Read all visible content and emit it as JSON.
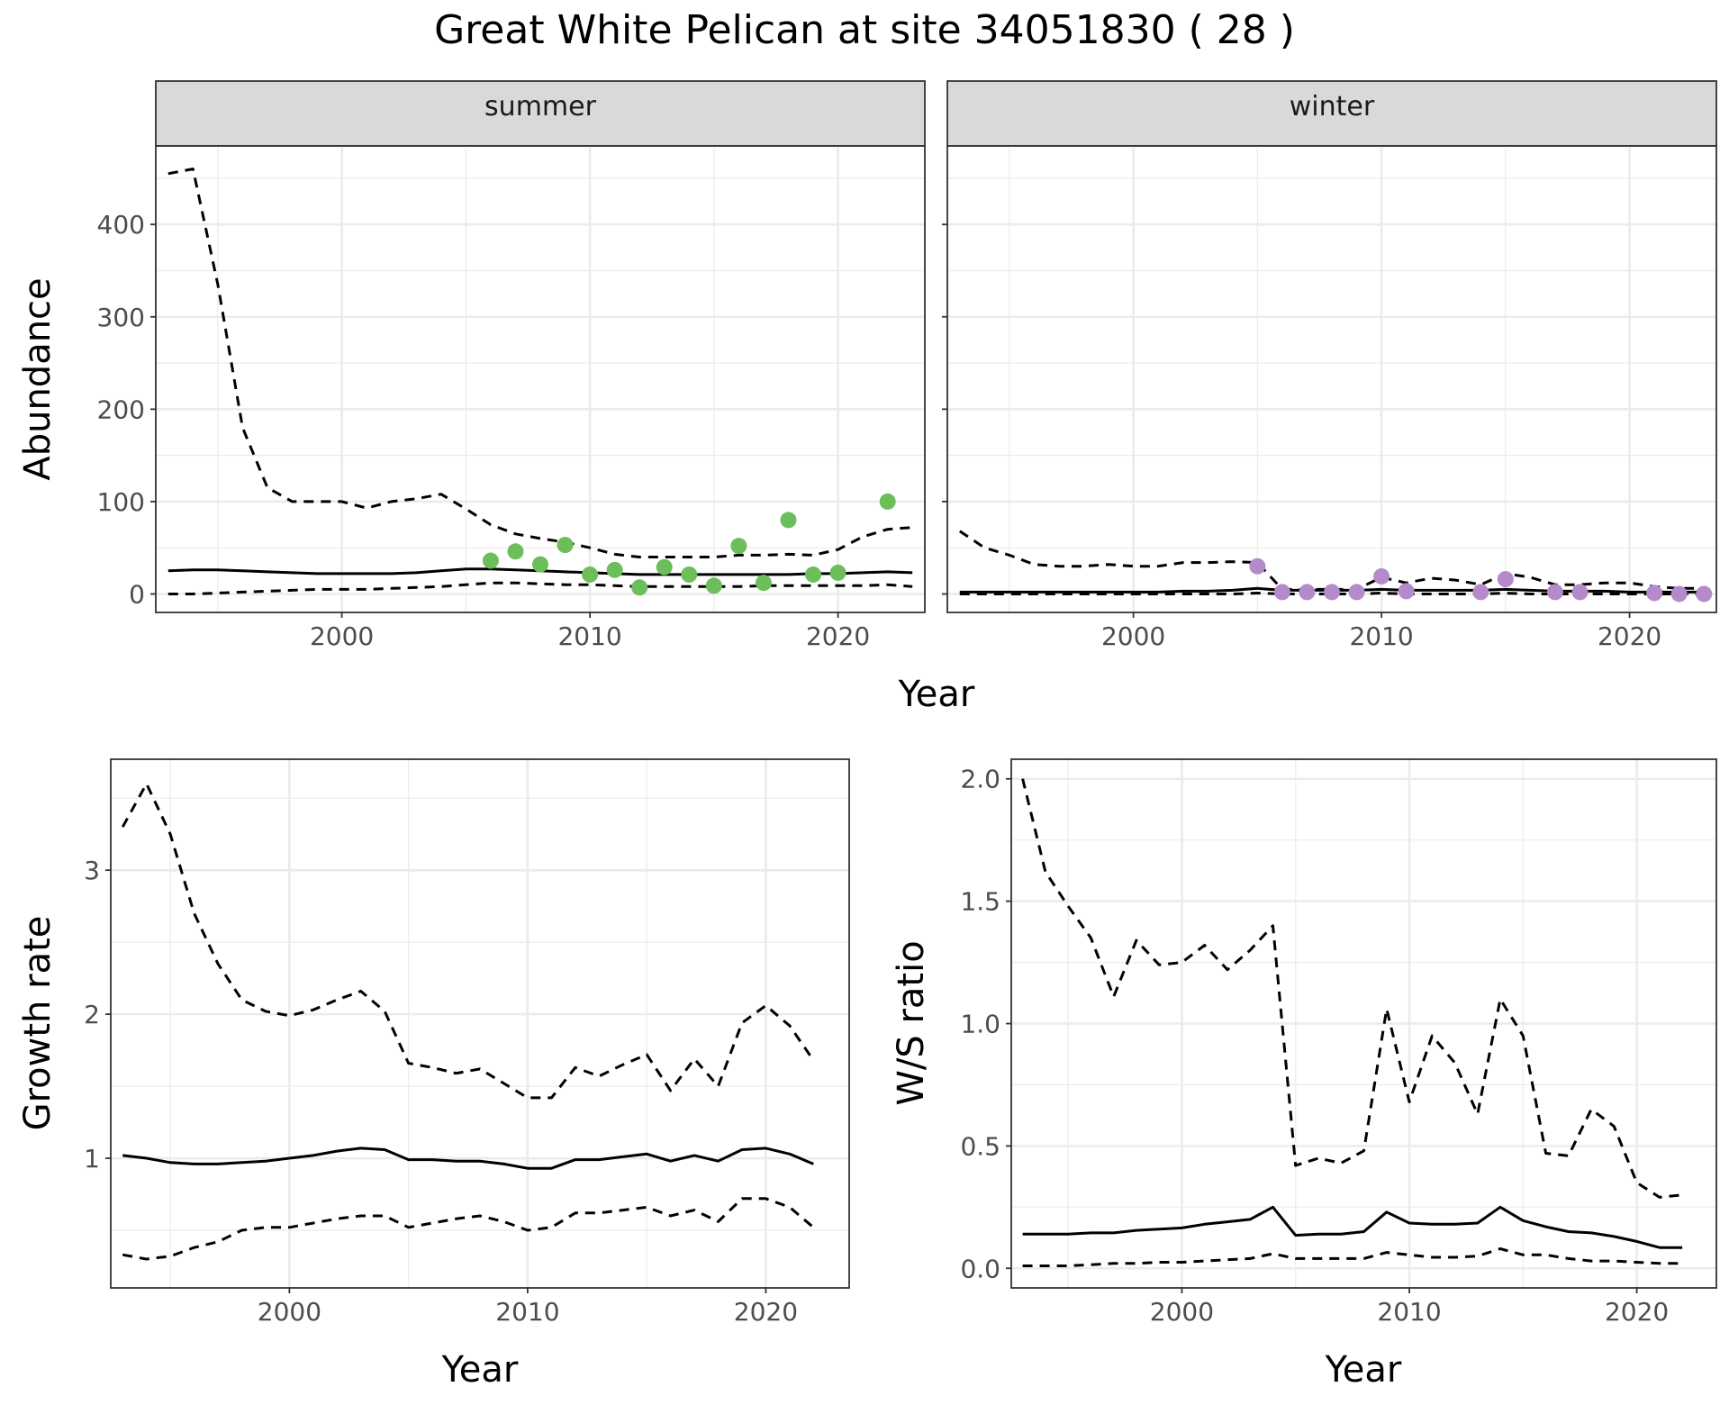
{
  "title": "Great White Pelican at site 34051830 ( 28 )",
  "colors": {
    "summer": "#6BBE5A",
    "winter": "#B58ACB",
    "line": "#000000",
    "strip_bg": "#D9D9D9",
    "grid": "#EBEBEB"
  },
  "chart_data": [
    {
      "type": "line",
      "panel": "abundance",
      "facets": [
        "summer",
        "winter"
      ],
      "xlabel": "Year",
      "ylabel": "Abundance",
      "xlim": [
        1992.5,
        2023.5
      ],
      "ylim": [
        -20,
        485
      ],
      "xticks": [
        2000,
        2010,
        2020
      ],
      "yticks": [
        0,
        100,
        200,
        300,
        400
      ],
      "grid": true,
      "series": [
        {
          "facet": "summer",
          "x": [
            1993,
            1994,
            1995,
            1996,
            1997,
            1998,
            1999,
            2000,
            2001,
            2002,
            2003,
            2004,
            2005,
            2006,
            2007,
            2008,
            2009,
            2010,
            2011,
            2012,
            2013,
            2014,
            2015,
            2016,
            2017,
            2018,
            2019,
            2020,
            2021,
            2022,
            2023
          ],
          "mean": [
            25,
            26,
            26,
            25,
            24,
            23,
            22,
            22,
            22,
            22,
            23,
            25,
            27,
            27,
            26,
            25,
            24,
            23,
            22,
            21,
            21,
            21,
            21,
            21,
            21,
            21,
            22,
            22,
            23,
            24,
            23
          ],
          "lower": [
            0,
            0,
            1,
            2,
            3,
            4,
            5,
            5,
            5,
            6,
            7,
            8,
            10,
            12,
            12,
            11,
            10,
            10,
            9,
            8,
            8,
            8,
            8,
            8,
            9,
            9,
            9,
            9,
            9,
            10,
            8
          ],
          "upper": [
            455,
            460,
            335,
            180,
            115,
            100,
            100,
            100,
            93,
            100,
            103,
            108,
            92,
            75,
            65,
            60,
            56,
            50,
            43,
            40,
            40,
            40,
            40,
            42,
            42,
            43,
            42,
            48,
            62,
            70,
            72
          ]
        },
        {
          "facet": "winter",
          "x": [
            1993,
            1994,
            1995,
            1996,
            1997,
            1998,
            1999,
            2000,
            2001,
            2002,
            2003,
            2004,
            2005,
            2006,
            2007,
            2008,
            2009,
            2010,
            2011,
            2012,
            2013,
            2014,
            2015,
            2016,
            2017,
            2018,
            2019,
            2020,
            2021,
            2022,
            2023
          ],
          "mean": [
            2,
            2,
            2,
            2,
            2,
            2,
            2,
            2,
            2,
            3,
            3,
            4,
            6,
            4,
            4,
            4,
            4,
            5,
            4,
            4,
            4,
            4,
            5,
            4,
            3,
            3,
            3,
            2,
            2,
            2,
            2
          ],
          "lower": [
            0,
            0,
            0,
            0,
            0,
            0,
            0,
            0,
            0,
            0,
            0,
            0,
            1,
            0,
            0,
            0,
            0,
            1,
            0,
            0,
            0,
            0,
            1,
            0,
            0,
            0,
            0,
            0,
            0,
            0,
            0
          ],
          "upper": [
            68,
            50,
            42,
            32,
            30,
            30,
            32,
            30,
            30,
            34,
            34,
            35,
            34,
            5,
            5,
            5,
            5,
            18,
            12,
            17,
            15,
            10,
            22,
            18,
            10,
            10,
            12,
            12,
            8,
            6,
            6
          ]
        }
      ],
      "points": [
        {
          "facet": "summer",
          "x": [
            2006,
            2007,
            2008,
            2009,
            2010,
            2011,
            2012,
            2013,
            2014,
            2015,
            2016,
            2017,
            2018,
            2019,
            2020,
            2022
          ],
          "y": [
            36,
            46,
            32,
            53,
            21,
            26,
            7,
            29,
            21,
            9,
            52,
            12,
            80,
            21,
            23,
            100
          ]
        },
        {
          "facet": "winter",
          "x": [
            2005,
            2006,
            2007,
            2008,
            2009,
            2010,
            2011,
            2014,
            2015,
            2017,
            2018,
            2021,
            2022,
            2023
          ],
          "y": [
            30,
            2,
            2,
            2,
            2,
            19,
            3,
            2,
            16,
            2,
            2,
            1,
            0,
            0
          ]
        }
      ]
    },
    {
      "type": "line",
      "panel": "growth",
      "xlabel": "Year",
      "ylabel": "Growth rate",
      "xlim": [
        1992.5,
        2023.5
      ],
      "ylim": [
        0.1,
        3.77
      ],
      "xticks": [
        2000,
        2010,
        2020
      ],
      "yticks": [
        1,
        2,
        3
      ],
      "grid": true,
      "x": [
        1993,
        1994,
        1995,
        1996,
        1997,
        1998,
        1999,
        2000,
        2001,
        2002,
        2003,
        2004,
        2005,
        2006,
        2007,
        2008,
        2009,
        2010,
        2011,
        2012,
        2013,
        2014,
        2015,
        2016,
        2017,
        2018,
        2019,
        2020,
        2021,
        2022
      ],
      "mean": [
        1.02,
        1.0,
        0.97,
        0.96,
        0.96,
        0.97,
        0.98,
        1.0,
        1.02,
        1.05,
        1.07,
        1.06,
        0.99,
        0.99,
        0.98,
        0.98,
        0.96,
        0.93,
        0.93,
        0.99,
        0.99,
        1.01,
        1.03,
        0.98,
        1.02,
        0.98,
        1.06,
        1.07,
        1.03,
        0.96
      ],
      "lower": [
        0.33,
        0.3,
        0.32,
        0.38,
        0.42,
        0.5,
        0.52,
        0.52,
        0.55,
        0.58,
        0.6,
        0.6,
        0.52,
        0.55,
        0.58,
        0.6,
        0.56,
        0.5,
        0.52,
        0.62,
        0.62,
        0.64,
        0.66,
        0.6,
        0.64,
        0.56,
        0.72,
        0.72,
        0.66,
        0.52
      ],
      "upper": [
        3.3,
        3.6,
        3.25,
        2.7,
        2.35,
        2.1,
        2.02,
        1.99,
        2.03,
        2.1,
        2.16,
        2.02,
        1.66,
        1.63,
        1.59,
        1.62,
        1.52,
        1.42,
        1.42,
        1.63,
        1.57,
        1.65,
        1.72,
        1.47,
        1.69,
        1.5,
        1.94,
        2.06,
        1.92,
        1.68
      ]
    },
    {
      "type": "line",
      "panel": "ratio",
      "xlabel": "Year",
      "ylabel": "W/S ratio",
      "xlim": [
        1992.5,
        2023.5
      ],
      "ylim": [
        -0.08,
        2.08
      ],
      "xticks": [
        2000,
        2010,
        2020
      ],
      "yticks": [
        "0.0",
        "0.5",
        "1.0",
        "1.5",
        "2.0"
      ],
      "grid": true,
      "x": [
        1993,
        1994,
        1995,
        1996,
        1997,
        1998,
        1999,
        2000,
        2001,
        2002,
        2003,
        2004,
        2005,
        2006,
        2007,
        2008,
        2009,
        2010,
        2011,
        2012,
        2013,
        2014,
        2015,
        2016,
        2017,
        2018,
        2019,
        2020,
        2021,
        2022
      ],
      "mean": [
        0.14,
        0.14,
        0.14,
        0.145,
        0.145,
        0.155,
        0.16,
        0.165,
        0.18,
        0.19,
        0.2,
        0.25,
        0.135,
        0.14,
        0.14,
        0.15,
        0.23,
        0.185,
        0.18,
        0.18,
        0.185,
        0.25,
        0.195,
        0.17,
        0.15,
        0.145,
        0.13,
        0.11,
        0.085,
        0.085
      ],
      "lower": [
        0.01,
        0.01,
        0.01,
        0.015,
        0.02,
        0.02,
        0.025,
        0.025,
        0.03,
        0.035,
        0.04,
        0.06,
        0.04,
        0.04,
        0.04,
        0.04,
        0.065,
        0.055,
        0.045,
        0.045,
        0.05,
        0.08,
        0.055,
        0.055,
        0.04,
        0.03,
        0.03,
        0.025,
        0.02,
        0.02
      ],
      "upper": [
        2.0,
        1.62,
        1.48,
        1.35,
        1.11,
        1.34,
        1.24,
        1.25,
        1.32,
        1.22,
        1.3,
        1.4,
        0.42,
        0.45,
        0.43,
        0.48,
        1.06,
        0.68,
        0.95,
        0.84,
        0.63,
        1.1,
        0.95,
        0.47,
        0.46,
        0.65,
        0.58,
        0.35,
        0.29,
        0.3
      ]
    }
  ]
}
